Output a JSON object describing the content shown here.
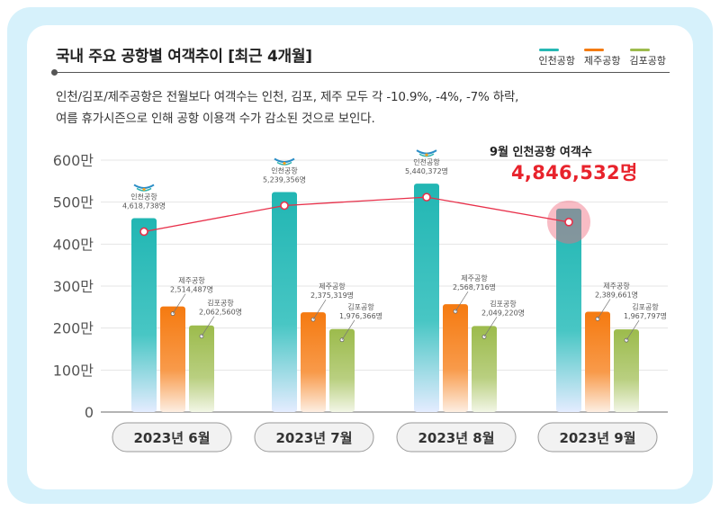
{
  "title": "국내 주요 공항별 여객추이 [최근 4개월]",
  "description": [
    "인천/김포/제주공항은 전월보다 여객수는 인천, 김포, 제주 모두 각 -10.9%, -4%, -7% 하락,",
    "여름 휴가시즌으로 인해 공항 이용객 수가 감소된 것으로 보인다."
  ],
  "highlight": {
    "label": "9월 인천공항 여객수",
    "value": "4,846,532명"
  },
  "colors": {
    "incheon": "#26b8b4",
    "jeju": "#f47b12",
    "gimpo": "#9dbb4e",
    "line": "#e8304a",
    "frame": "#d6f1fb"
  },
  "chart_data": {
    "type": "bar",
    "categories": [
      "2023년 6월",
      "2023년 7월",
      "2023년 8월",
      "2023년 9월"
    ],
    "series": [
      {
        "name": "인천공항",
        "values": [
          4618738,
          5239356,
          5440372,
          4846532
        ],
        "labels": [
          "4,618,738명",
          "5,239,356명",
          "5,440,372명",
          ""
        ]
      },
      {
        "name": "제주공항",
        "values": [
          2514487,
          2375319,
          2568716,
          2389661
        ],
        "labels": [
          "2,514,487명",
          "2,375,319명",
          "2,568,716명",
          "2,389,661명"
        ]
      },
      {
        "name": "김포공항",
        "values": [
          2062560,
          1976366,
          2049220,
          1967797
        ],
        "labels": [
          "2,062,560명",
          "1,976,366명",
          "2,049,220명",
          "1,967,797명"
        ]
      }
    ],
    "line_series": "인천공항",
    "yticks": [
      "0",
      "100만",
      "200만",
      "300만",
      "400만",
      "500만",
      "600만"
    ],
    "ylim": [
      0,
      6000000
    ],
    "grid": true,
    "legend_position": "top-right"
  }
}
